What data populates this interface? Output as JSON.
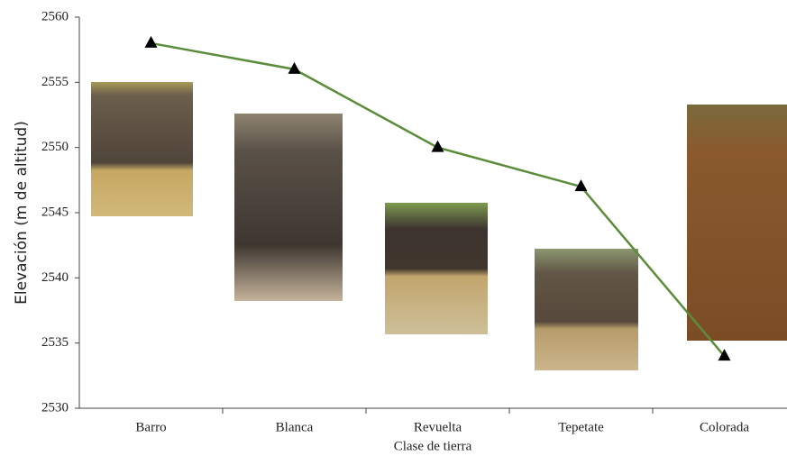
{
  "chart_data": {
    "type": "line",
    "categories": [
      "Barro",
      "Blanca",
      "Revuelta",
      "Tepetate",
      "Colorada"
    ],
    "series": [
      {
        "name": "Elevación",
        "color": "#5b8c3a",
        "values": [
          2558,
          2556,
          2550,
          2547,
          2534
        ]
      }
    ],
    "x_label": "Clase de tierra",
    "y_label": "Elevación (m de altitud)",
    "ylim": [
      2530,
      2560
    ],
    "yticks": [
      2530,
      2535,
      2540,
      2545,
      2550,
      2555,
      2560
    ]
  }
}
